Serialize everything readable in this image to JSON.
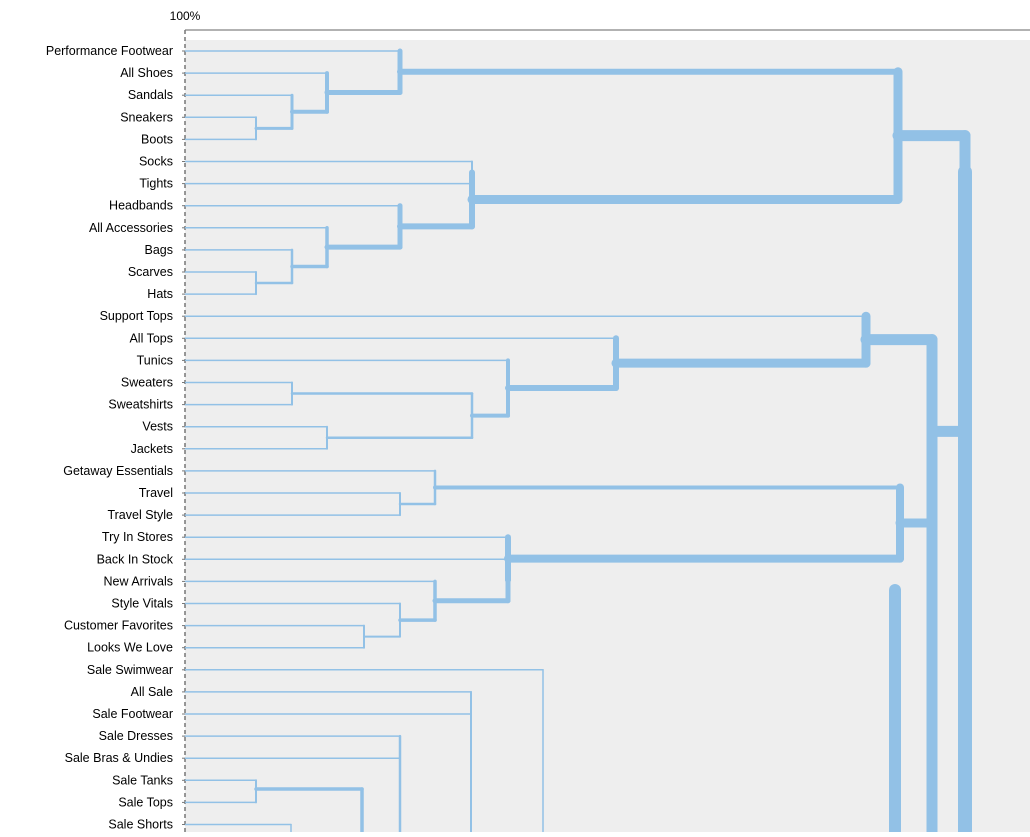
{
  "chart_data": {
    "type": "dendrogram",
    "scale_label": "100%",
    "link_color": "#92c1e6",
    "panel_color": "#eeeeee",
    "leaves": [
      "Performance Footwear",
      "All Shoes",
      "Sandals",
      "Sneakers",
      "Boots",
      "Socks",
      "Tights",
      "Headbands",
      "All Accessories",
      "Bags",
      "Scarves",
      "Hats",
      "Support Tops",
      "All Tops",
      "Tunics",
      "Sweaters",
      "Sweatshirts",
      "Vests",
      "Jackets",
      "Getaway Essentials",
      "Travel",
      "Travel Style",
      "Try In Stores",
      "Back In Stock",
      "New Arrivals",
      "Style Vitals",
      "Customer Favorites",
      "Looks We Love",
      "Sale Swimwear",
      "All Sale",
      "Sale Footwear",
      "Sale Dresses",
      "Sale Bras & Undies",
      "Sale Tanks",
      "Sale Tops",
      "Sale Shorts"
    ]
  }
}
